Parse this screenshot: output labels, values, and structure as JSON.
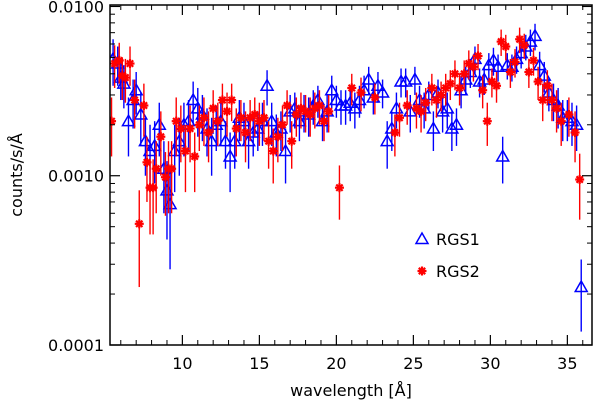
{
  "chart_data": {
    "type": "scatter",
    "xlabel": "wavelength [Å]",
    "ylabel": "counts/s/Å",
    "xlim": [
      5.3,
      36.6
    ],
    "ylim": [
      0.0001,
      0.0102
    ],
    "yscale": "log",
    "x_ticks": [
      10,
      15,
      20,
      25,
      30,
      35
    ],
    "x_tick_labels": [
      "10",
      "15",
      "20",
      "25",
      "30",
      "35"
    ],
    "y_ticks": [
      0.0001,
      0.001,
      0.01
    ],
    "y_tick_labels": [
      "0.0001",
      "0.0010",
      "0.0100"
    ],
    "legend_position": "lower-right",
    "error_bars": true,
    "series": [
      {
        "name": "RGS1",
        "color": "#0000ff",
        "marker": "triangle",
        "points": [
          [
            5.5,
            0.0049,
            0.0015
          ],
          [
            5.8,
            0.0046,
            0.0012
          ],
          [
            6.0,
            0.0038,
            0.001
          ],
          [
            6.2,
            0.0035,
            0.001
          ],
          [
            6.5,
            0.0021,
            0.0008
          ],
          [
            6.8,
            0.0028,
            0.0009
          ],
          [
            7.0,
            0.0032,
            0.0009
          ],
          [
            7.3,
            0.0023,
            0.0008
          ],
          [
            7.6,
            0.0016,
            0.0006
          ],
          [
            7.9,
            0.0014,
            0.0006
          ],
          [
            8.2,
            0.0015,
            0.0006
          ],
          [
            8.5,
            0.002,
            0.0007
          ],
          [
            8.8,
            0.0011,
            0.0005
          ],
          [
            9.0,
            0.00082,
            0.0004
          ],
          [
            9.2,
            0.00068,
            0.0004
          ],
          [
            9.5,
            0.0014,
            0.0006
          ],
          [
            9.8,
            0.0016,
            0.0006
          ],
          [
            10.1,
            0.002,
            0.0007
          ],
          [
            10.4,
            0.0021,
            0.0007
          ],
          [
            10.7,
            0.0028,
            0.0008
          ],
          [
            11.0,
            0.0025,
            0.0008
          ],
          [
            11.3,
            0.0023,
            0.0007
          ],
          [
            11.6,
            0.0019,
            0.0006
          ],
          [
            11.9,
            0.0016,
            0.0006
          ],
          [
            12.2,
            0.002,
            0.0006
          ],
          [
            12.5,
            0.0021,
            0.0006
          ],
          [
            12.8,
            0.0016,
            0.0005
          ],
          [
            13.1,
            0.0013,
            0.0005
          ],
          [
            13.4,
            0.0016,
            0.0005
          ],
          [
            13.7,
            0.0022,
            0.0006
          ],
          [
            14.0,
            0.0021,
            0.0006
          ],
          [
            14.3,
            0.0016,
            0.0005
          ],
          [
            14.6,
            0.0018,
            0.0005
          ],
          [
            14.9,
            0.0019,
            0.0005
          ],
          [
            15.2,
            0.0021,
            0.0006
          ],
          [
            15.5,
            0.0034,
            0.0008
          ],
          [
            15.8,
            0.0021,
            0.0006
          ],
          [
            16.1,
            0.0018,
            0.0005
          ],
          [
            16.4,
            0.0019,
            0.0005
          ],
          [
            16.7,
            0.0014,
            0.0005
          ],
          [
            17.0,
            0.0024,
            0.0006
          ],
          [
            17.3,
            0.0025,
            0.0006
          ],
          [
            17.6,
            0.0021,
            0.0005
          ],
          [
            17.9,
            0.0024,
            0.0006
          ],
          [
            18.2,
            0.0023,
            0.0006
          ],
          [
            18.5,
            0.0026,
            0.0006
          ],
          [
            18.8,
            0.0028,
            0.0006
          ],
          [
            19.1,
            0.0021,
            0.0005
          ],
          [
            19.4,
            0.0024,
            0.0006
          ],
          [
            19.7,
            0.0032,
            0.0007
          ],
          [
            20.0,
            0.0028,
            0.0006
          ],
          [
            20.3,
            0.0026,
            0.0006
          ],
          [
            20.6,
            0.0026,
            0.0006
          ],
          [
            20.9,
            0.0027,
            0.0006
          ],
          [
            21.2,
            0.0025,
            0.0006
          ],
          [
            21.5,
            0.0028,
            0.0006
          ],
          [
            21.8,
            0.0032,
            0.0007
          ],
          [
            22.1,
            0.0037,
            0.0007
          ],
          [
            22.4,
            0.0029,
            0.0006
          ],
          [
            22.7,
            0.0034,
            0.0007
          ],
          [
            23.0,
            0.0031,
            0.0006
          ],
          [
            23.3,
            0.0016,
            0.0005
          ],
          [
            23.6,
            0.0019,
            0.0005
          ],
          [
            23.9,
            0.0025,
            0.0006
          ],
          [
            24.2,
            0.0036,
            0.0007
          ],
          [
            24.5,
            0.0036,
            0.0007
          ],
          [
            24.8,
            0.0024,
            0.0006
          ],
          [
            25.1,
            0.0037,
            0.0007
          ],
          [
            25.4,
            0.0028,
            0.0006
          ],
          [
            25.7,
            0.0025,
            0.0006
          ],
          [
            26.0,
            0.003,
            0.0006
          ],
          [
            26.3,
            0.0019,
            0.0005
          ],
          [
            26.6,
            0.0031,
            0.0006
          ],
          [
            26.9,
            0.0024,
            0.0006
          ],
          [
            27.2,
            0.0025,
            0.0006
          ],
          [
            27.5,
            0.0019,
            0.0005
          ],
          [
            27.8,
            0.002,
            0.0005
          ],
          [
            28.1,
            0.0032,
            0.0007
          ],
          [
            28.4,
            0.0037,
            0.0007
          ],
          [
            28.7,
            0.0041,
            0.0008
          ],
          [
            29.0,
            0.0049,
            0.0009
          ],
          [
            29.3,
            0.0036,
            0.0007
          ],
          [
            29.6,
            0.0037,
            0.0007
          ],
          [
            29.9,
            0.0045,
            0.0008
          ],
          [
            30.2,
            0.0048,
            0.0009
          ],
          [
            30.5,
            0.0044,
            0.0008
          ],
          [
            30.8,
            0.0013,
            0.0004
          ],
          [
            31.1,
            0.0045,
            0.0008
          ],
          [
            31.4,
            0.0044,
            0.0008
          ],
          [
            31.7,
            0.0049,
            0.0009
          ],
          [
            32.0,
            0.0053,
            0.001
          ],
          [
            32.3,
            0.0058,
            0.001
          ],
          [
            32.6,
            0.0062,
            0.0011
          ],
          [
            32.9,
            0.0067,
            0.0012
          ],
          [
            33.2,
            0.0045,
            0.0009
          ],
          [
            33.5,
            0.0039,
            0.0008
          ],
          [
            33.8,
            0.0031,
            0.0007
          ],
          [
            34.1,
            0.0028,
            0.0007
          ],
          [
            34.4,
            0.0026,
            0.0007
          ],
          [
            34.7,
            0.0022,
            0.0006
          ],
          [
            35.0,
            0.0022,
            0.0006
          ],
          [
            35.3,
            0.0021,
            0.0006
          ],
          [
            35.6,
            0.002,
            0.0006
          ],
          [
            35.9,
            0.00022,
            0.0001
          ]
        ]
      },
      {
        "name": "RGS2",
        "color": "#ff0000",
        "marker": "asterisk",
        "points": [
          [
            5.4,
            0.0021,
            0.0008
          ],
          [
            5.6,
            0.0046,
            0.0013
          ],
          [
            5.9,
            0.0048,
            0.0013
          ],
          [
            6.1,
            0.0039,
            0.0011
          ],
          [
            6.3,
            0.0038,
            0.0011
          ],
          [
            6.6,
            0.0046,
            0.0012
          ],
          [
            6.9,
            0.0028,
            0.0009
          ],
          [
            7.2,
            0.00052,
            0.0003
          ],
          [
            7.5,
            0.0026,
            0.0009
          ],
          [
            7.7,
            0.0012,
            0.0005
          ],
          [
            7.9,
            0.00085,
            0.0004
          ],
          [
            8.1,
            0.00085,
            0.0004
          ],
          [
            8.3,
            0.0011,
            0.0005
          ],
          [
            8.6,
            0.0017,
            0.0007
          ],
          [
            8.9,
            0.00098,
            0.0004
          ],
          [
            9.1,
            0.0011,
            0.0005
          ],
          [
            9.3,
            0.0011,
            0.0005
          ],
          [
            9.6,
            0.0021,
            0.0008
          ],
          [
            9.9,
            0.0019,
            0.0007
          ],
          [
            10.2,
            0.0014,
            0.0006
          ],
          [
            10.5,
            0.0019,
            0.0007
          ],
          [
            10.8,
            0.0013,
            0.0005
          ],
          [
            11.1,
            0.002,
            0.0006
          ],
          [
            11.4,
            0.0022,
            0.0007
          ],
          [
            11.7,
            0.0018,
            0.0006
          ],
          [
            12.0,
            0.0025,
            0.0007
          ],
          [
            12.3,
            0.0021,
            0.0006
          ],
          [
            12.6,
            0.0028,
            0.0007
          ],
          [
            12.9,
            0.0024,
            0.0007
          ],
          [
            13.2,
            0.0028,
            0.0007
          ],
          [
            13.5,
            0.0019,
            0.0006
          ],
          [
            13.8,
            0.0022,
            0.0006
          ],
          [
            14.1,
            0.0018,
            0.0006
          ],
          [
            14.4,
            0.0022,
            0.0006
          ],
          [
            14.7,
            0.0023,
            0.0006
          ],
          [
            15.0,
            0.0021,
            0.0006
          ],
          [
            15.3,
            0.0022,
            0.0006
          ],
          [
            15.6,
            0.0016,
            0.0005
          ],
          [
            15.9,
            0.0014,
            0.0005
          ],
          [
            16.2,
            0.0017,
            0.0005
          ],
          [
            16.5,
            0.002,
            0.0006
          ],
          [
            16.8,
            0.0026,
            0.0006
          ],
          [
            17.1,
            0.0016,
            0.0005
          ],
          [
            17.4,
            0.0023,
            0.0006
          ],
          [
            17.7,
            0.0025,
            0.0006
          ],
          [
            18.0,
            0.0024,
            0.0006
          ],
          [
            18.3,
            0.0023,
            0.0006
          ],
          [
            18.6,
            0.0025,
            0.0006
          ],
          [
            18.9,
            0.0026,
            0.0006
          ],
          [
            19.2,
            0.0021,
            0.0005
          ],
          [
            19.5,
            0.0024,
            0.0006
          ],
          [
            20.2,
            0.00085,
            0.0003
          ],
          [
            21.0,
            0.0033,
            0.0007
          ],
          [
            21.6,
            0.0031,
            0.0007
          ],
          [
            22.5,
            0.0029,
            0.0006
          ],
          [
            23.8,
            0.0018,
            0.0005
          ],
          [
            24.1,
            0.0022,
            0.0005
          ],
          [
            24.6,
            0.0026,
            0.0006
          ],
          [
            25.2,
            0.0025,
            0.0006
          ],
          [
            25.5,
            0.0024,
            0.0006
          ],
          [
            25.8,
            0.0027,
            0.0006
          ],
          [
            26.2,
            0.0033,
            0.0007
          ],
          [
            26.5,
            0.0028,
            0.0006
          ],
          [
            26.8,
            0.003,
            0.0006
          ],
          [
            27.1,
            0.0033,
            0.0007
          ],
          [
            27.4,
            0.0035,
            0.0007
          ],
          [
            27.7,
            0.004,
            0.0008
          ],
          [
            28.0,
            0.0033,
            0.0007
          ],
          [
            28.3,
            0.004,
            0.0008
          ],
          [
            28.6,
            0.0046,
            0.0009
          ],
          [
            28.9,
            0.0044,
            0.0008
          ],
          [
            29.2,
            0.0051,
            0.0009
          ],
          [
            29.5,
            0.0032,
            0.0007
          ],
          [
            29.8,
            0.0021,
            0.0006
          ],
          [
            30.1,
            0.0036,
            0.0007
          ],
          [
            30.4,
            0.0034,
            0.0007
          ],
          [
            30.7,
            0.0062,
            0.0011
          ],
          [
            31.0,
            0.0058,
            0.001
          ],
          [
            31.3,
            0.0041,
            0.0008
          ],
          [
            31.6,
            0.0047,
            0.0009
          ],
          [
            31.9,
            0.0064,
            0.0011
          ],
          [
            32.2,
            0.0059,
            0.001
          ],
          [
            32.5,
            0.0041,
            0.0008
          ],
          [
            32.8,
            0.0048,
            0.0009
          ],
          [
            33.1,
            0.0036,
            0.0008
          ],
          [
            33.4,
            0.0028,
            0.0007
          ],
          [
            33.7,
            0.0034,
            0.0008
          ],
          [
            34.0,
            0.0028,
            0.0007
          ],
          [
            34.3,
            0.0025,
            0.0007
          ],
          [
            34.6,
            0.0021,
            0.0006
          ],
          [
            35.1,
            0.0023,
            0.0006
          ],
          [
            35.5,
            0.0018,
            0.0006
          ],
          [
            35.8,
            0.00095,
            0.0004
          ]
        ]
      }
    ]
  }
}
